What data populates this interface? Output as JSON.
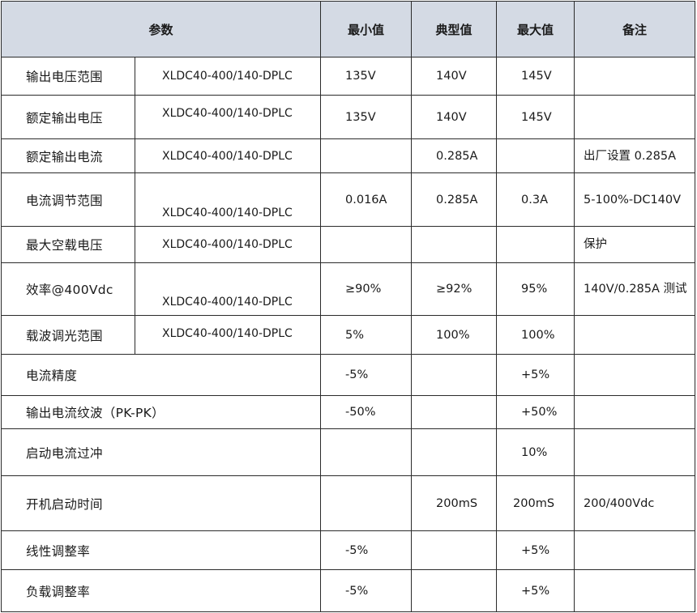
{
  "header": {
    "param": "参数",
    "min": "最小值",
    "typ": "典型值",
    "max": "最大值",
    "note": "备注"
  },
  "rows": [
    {
      "name": "输出电压范围",
      "model": "XLDC40-400/140-DPLC",
      "min": "135V",
      "typ": "140V",
      "max": "145V",
      "note": ""
    },
    {
      "name": "额定输出电压",
      "model": "XLDC40-400/140-DPLC",
      "min": "135V",
      "typ": "140V",
      "max": "145V",
      "note": ""
    },
    {
      "name": "额定输出电流",
      "model": "XLDC40-400/140-DPLC",
      "min": "",
      "typ": "0.285A",
      "max": "",
      "note": "出厂设置 0.285A"
    },
    {
      "name": "电流调节范围",
      "model": "XLDC40-400/140-DPLC",
      "min": "0.016A",
      "typ": "0.285A",
      "max": "0.3A",
      "note": "5-100%-DC140V"
    },
    {
      "name": "最大空载电压",
      "model": "XLDC40-400/140-DPLC",
      "min": "",
      "typ": "",
      "max": "",
      "note": "保护"
    },
    {
      "name": "效率@400Vdc",
      "model": "XLDC40-400/140-DPLC",
      "min": "≥90%",
      "typ": "≥92%",
      "max": "95%",
      "note": "140V/0.285A 测试"
    },
    {
      "name": "载波调光范围",
      "model": "XLDC40-400/140-DPLC",
      "min": "5%",
      "typ": "100%",
      "max": "100%",
      "note": ""
    },
    {
      "name": "电流精度",
      "min": "-5%",
      "typ": "",
      "max": "+5%",
      "note": ""
    },
    {
      "name": "输出电流纹波（PK-PK）",
      "min": "-50%",
      "typ": "",
      "max": "+50%",
      "note": ""
    },
    {
      "name": "启动电流过冲",
      "min": "",
      "typ": "",
      "max": "10%",
      "note": ""
    },
    {
      "name": "开机启动时间",
      "min": "",
      "typ": "200mS",
      "max": "200mS",
      "note": "200/400Vdc"
    },
    {
      "name": "线性调整率",
      "min": "-5%",
      "typ": "",
      "max": "+5%",
      "note": ""
    },
    {
      "name": "负载调整率",
      "min": "-5%",
      "typ": "",
      "max": "+5%",
      "note": ""
    }
  ]
}
